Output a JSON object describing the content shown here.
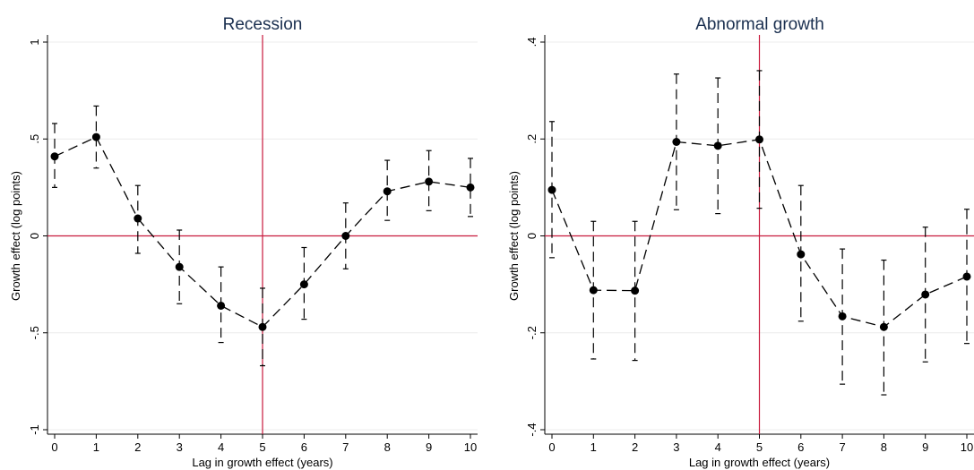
{
  "chart_data": [
    {
      "type": "scatter",
      "title": "Recession",
      "xlabel": "Lag in growth effect (years)",
      "ylabel": "Growth effect (log points)",
      "xlim": [
        0,
        10
      ],
      "ylim": [
        -1,
        1
      ],
      "xticks": [
        "0",
        "1",
        "2",
        "3",
        "4",
        "5",
        "6",
        "7",
        "8",
        "9",
        "10"
      ],
      "yticks": [
        {
          "value": -1,
          "label": "-1"
        },
        {
          "value": -0.5,
          "label": "-.5"
        },
        {
          "value": 0,
          "label": "0"
        },
        {
          "value": 0.5,
          "label": ".5"
        },
        {
          "value": 1,
          "label": "1"
        }
      ],
      "reference_lines": {
        "x": 5,
        "y": 0,
        "color": "#c8193c"
      },
      "grid": "horizontal",
      "series": [
        {
          "x": [
            0,
            1,
            2,
            3,
            4,
            5,
            6,
            7,
            8,
            9,
            10
          ],
          "values": [
            0.41,
            0.51,
            0.09,
            -0.16,
            -0.36,
            -0.47,
            -0.25,
            0.0,
            0.23,
            0.28,
            0.25
          ],
          "ci_low": [
            0.25,
            0.35,
            -0.09,
            -0.35,
            -0.55,
            -0.67,
            -0.43,
            -0.17,
            0.08,
            0.13,
            0.1
          ],
          "ci_high": [
            0.58,
            0.67,
            0.26,
            0.03,
            -0.16,
            -0.27,
            -0.06,
            0.17,
            0.39,
            0.44,
            0.4
          ]
        }
      ]
    },
    {
      "type": "scatter",
      "title": "Abnormal growth",
      "xlabel": "Lag in growth effect  (years)",
      "ylabel": "Growth effect (log points)",
      "xlim": [
        0,
        10
      ],
      "ylim": [
        -0.4,
        0.4
      ],
      "xticks": [
        "0",
        "1",
        "2",
        "3",
        "4",
        "5",
        "6",
        "7",
        "8",
        "9",
        "10"
      ],
      "yticks": [
        {
          "value": -0.4,
          "label": "-.4"
        },
        {
          "value": -0.2,
          "label": "-.2"
        },
        {
          "value": 0,
          "label": "0"
        },
        {
          "value": 0.2,
          "label": ".2"
        },
        {
          "value": 0.4,
          "label": ".4"
        }
      ],
      "reference_lines": {
        "x": 5,
        "y": 0,
        "color": "#c8193c"
      },
      "grid": "horizontal",
      "series": [
        {
          "x": [
            0,
            1,
            2,
            3,
            4,
            5,
            6,
            7,
            8,
            9,
            10
          ],
          "values": [
            0.095,
            -0.112,
            -0.113,
            0.194,
            0.186,
            0.199,
            -0.038,
            -0.166,
            -0.188,
            -0.121,
            -0.084
          ],
          "ci_low": [
            -0.045,
            -0.254,
            -0.257,
            0.054,
            0.046,
            0.057,
            -0.176,
            -0.306,
            -0.328,
            -0.26,
            -0.222
          ],
          "ci_high": [
            0.236,
            0.03,
            0.03,
            0.334,
            0.326,
            0.341,
            0.104,
            -0.027,
            -0.05,
            0.018,
            0.055
          ]
        }
      ]
    }
  ]
}
